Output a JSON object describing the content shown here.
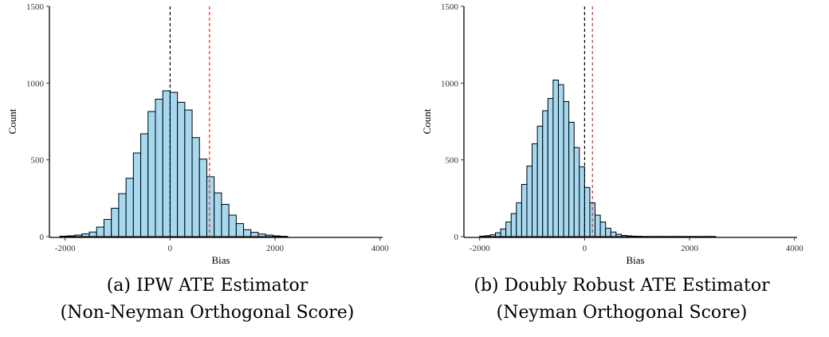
{
  "chart_data": [
    {
      "type": "bar",
      "subtype": "histogram",
      "bin_width": 140,
      "bin_start": -2100,
      "counts": [
        3,
        5,
        10,
        18,
        30,
        62,
        112,
        185,
        280,
        380,
        545,
        670,
        815,
        895,
        950,
        940,
        875,
        825,
        645,
        505,
        390,
        285,
        210,
        140,
        85,
        45,
        28,
        17,
        10,
        5,
        2
      ],
      "xlabel": "Bias",
      "ylabel": "Count",
      "xlim": [
        -2300,
        4050
      ],
      "ylim": [
        0,
        1500
      ],
      "xticks": [
        -2000,
        0,
        2000,
        4000
      ],
      "yticks": [
        0,
        500,
        1000,
        1500
      ],
      "vlines": [
        {
          "x": 0,
          "color": "#000000",
          "style": "dashed"
        },
        {
          "x": 750,
          "color": "#e0302a",
          "style": "dashed"
        }
      ],
      "bar_fill": "#a6d8f0",
      "bar_stroke": "#000000",
      "grid": false
    },
    {
      "type": "bar",
      "subtype": "histogram",
      "bin_width": 100,
      "bin_start": -2000,
      "counts": [
        3,
        6,
        12,
        25,
        50,
        95,
        150,
        220,
        340,
        460,
        605,
        720,
        820,
        900,
        1020,
        990,
        880,
        745,
        580,
        455,
        320,
        220,
        140,
        95,
        55,
        30,
        15,
        8,
        5,
        3,
        2,
        1,
        1,
        1,
        1,
        1,
        1,
        1,
        1,
        1,
        1,
        1,
        1,
        1,
        1
      ],
      "xlabel": "Bias",
      "ylabel": "Count",
      "xlim": [
        -2300,
        4050
      ],
      "ylim": [
        0,
        1500
      ],
      "xticks": [
        -2000,
        0,
        2000,
        4000
      ],
      "yticks": [
        0,
        500,
        1000,
        1500
      ],
      "vlines": [
        {
          "x": 0,
          "color": "#000000",
          "style": "dashed"
        },
        {
          "x": 150,
          "color": "#e0302a",
          "style": "dashed"
        }
      ],
      "bar_fill": "#a6d8f0",
      "bar_stroke": "#000000",
      "grid": false
    }
  ],
  "captions": [
    {
      "line1": "(a) IPW ATE Estimator",
      "line2": "(Non-Neyman Orthogonal Score)"
    },
    {
      "line1": "(b) Doubly Robust ATE Estimator",
      "line2": "(Neyman Orthogonal Score)"
    }
  ]
}
